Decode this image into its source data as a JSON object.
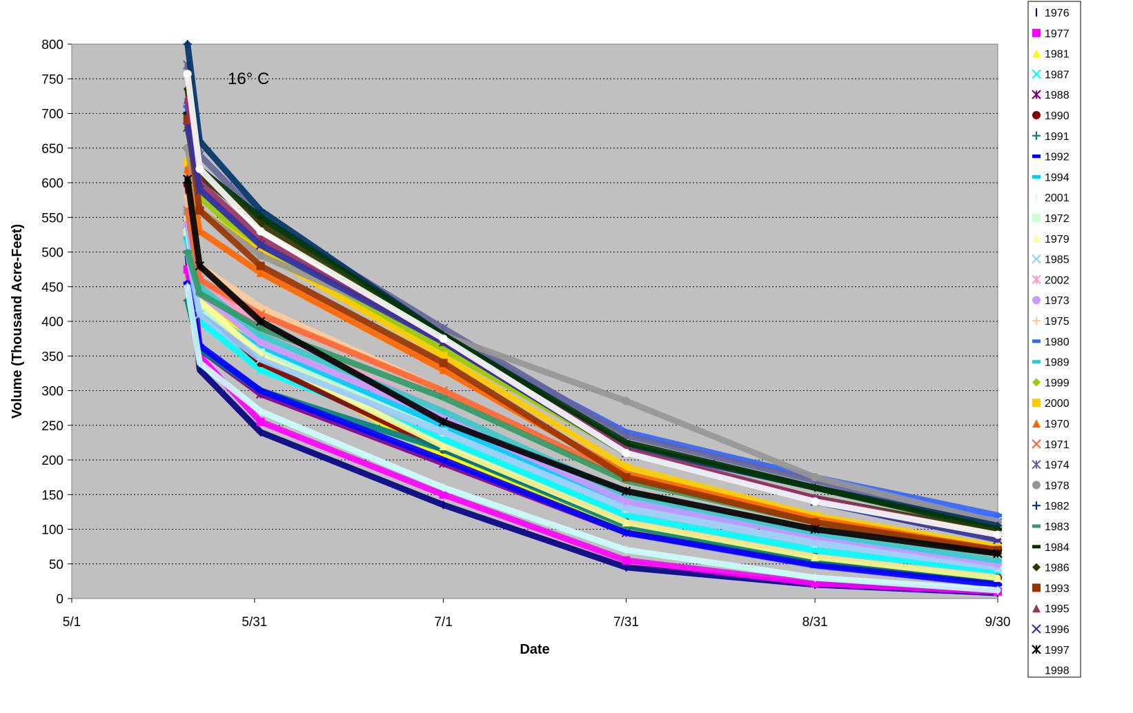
{
  "chart_data": {
    "type": "scatter",
    "title": "",
    "xlabel": "Date",
    "ylabel": "Volume (Thousand Acre-Feet)",
    "annotation": "16° C",
    "x_axis": {
      "type": "date",
      "min": "5/1",
      "max": "9/30",
      "ticks": [
        "5/1",
        "5/31",
        "7/1",
        "7/31",
        "8/31",
        "9/30"
      ]
    },
    "y_axis": {
      "min": 0,
      "max": 800,
      "step": 50,
      "ticks": [
        0,
        50,
        100,
        150,
        200,
        250,
        300,
        350,
        400,
        450,
        500,
        550,
        600,
        650,
        700,
        750,
        800
      ]
    },
    "plot_background": "#c0c0c0",
    "grid": "horizontal dotted",
    "legend_position": "right",
    "series": [
      {
        "name": "1976",
        "color": "#000080",
        "marker": "bar",
        "x": [
          "5/20",
          "5/22",
          "6/1",
          "7/1",
          "7/31",
          "8/31",
          "9/30"
        ],
        "y": [
          497,
          330,
          240,
          135,
          45,
          20,
          8
        ]
      },
      {
        "name": "1977",
        "color": "#ff00ff",
        "marker": "square",
        "x": [
          "5/20",
          "5/22",
          "6/1",
          "7/1",
          "7/31",
          "8/31",
          "9/30"
        ],
        "y": [
          475,
          350,
          255,
          150,
          55,
          22,
          10
        ]
      },
      {
        "name": "1981",
        "color": "#ffff00",
        "marker": "triangle",
        "x": [
          "5/20",
          "5/22",
          "6/1",
          "7/1",
          "7/31",
          "8/31",
          "9/30"
        ],
        "y": [
          560,
          440,
          350,
          205,
          100,
          55,
          25
        ]
      },
      {
        "name": "1987",
        "color": "#00ffff",
        "marker": "x",
        "x": [
          "5/20",
          "5/22",
          "6/1",
          "7/1",
          "7/31",
          "8/31",
          "9/30"
        ],
        "y": [
          520,
          400,
          330,
          230,
          120,
          70,
          40
        ]
      },
      {
        "name": "1988",
        "color": "#800080",
        "marker": "star",
        "x": [
          "5/20",
          "5/22",
          "6/1",
          "7/1",
          "7/31",
          "8/31",
          "9/30"
        ],
        "y": [
          540,
          360,
          295,
          195,
          95,
          50,
          25
        ]
      },
      {
        "name": "1990",
        "color": "#800000",
        "marker": "circle",
        "x": [
          "5/20",
          "5/22",
          "6/1",
          "7/1",
          "7/31",
          "8/31",
          "9/30"
        ],
        "y": [
          597,
          420,
          340,
          215,
          110,
          60,
          30
        ]
      },
      {
        "name": "1991",
        "color": "#008080",
        "marker": "plus",
        "x": [
          "5/20",
          "5/22",
          "6/1",
          "7/1",
          "7/31",
          "8/31",
          "9/30"
        ],
        "y": [
          430,
          360,
          300,
          215,
          105,
          55,
          28
        ]
      },
      {
        "name": "1992",
        "color": "#0000ff",
        "marker": "dash",
        "x": [
          "5/20",
          "5/22",
          "6/1",
          "7/1",
          "7/31",
          "8/31",
          "9/30"
        ],
        "y": [
          455,
          365,
          300,
          200,
          95,
          48,
          20
        ]
      },
      {
        "name": "1994",
        "color": "#00ccff",
        "marker": "dash",
        "x": [
          "5/20",
          "5/22",
          "6/1",
          "7/1",
          "7/31",
          "8/31",
          "9/30"
        ],
        "y": [
          520,
          420,
          360,
          250,
          140,
          90,
          50
        ]
      },
      {
        "name": "2001",
        "color": "#ccffff",
        "marker": "bar",
        "x": [
          "5/20",
          "5/22",
          "6/1",
          "7/1",
          "7/31",
          "8/31",
          "9/30"
        ],
        "y": [
          450,
          340,
          270,
          160,
          70,
          30,
          12
        ]
      },
      {
        "name": "1972",
        "color": "#ccffcc",
        "marker": "square",
        "x": [
          "5/20",
          "5/22",
          "6/1",
          "7/1",
          "7/31",
          "8/31",
          "9/30"
        ],
        "y": [
          530,
          420,
          355,
          240,
          130,
          80,
          45
        ]
      },
      {
        "name": "1979",
        "color": "#ffff99",
        "marker": "triangle",
        "x": [
          "5/20",
          "5/22",
          "6/1",
          "7/1",
          "7/31",
          "8/31",
          "9/30"
        ],
        "y": [
          550,
          430,
          350,
          220,
          110,
          60,
          30
        ]
      },
      {
        "name": "1985",
        "color": "#99ccff",
        "marker": "x",
        "x": [
          "5/20",
          "5/22",
          "6/1",
          "7/1",
          "7/31",
          "8/31",
          "9/30"
        ],
        "y": [
          500,
          410,
          345,
          240,
          130,
          80,
          45
        ]
      },
      {
        "name": "2002",
        "color": "#ff99cc",
        "marker": "star",
        "x": [
          "5/20",
          "5/22",
          "6/1",
          "7/1",
          "7/31",
          "8/31",
          "9/30"
        ],
        "y": [
          560,
          460,
          390,
          270,
          150,
          95,
          55
        ]
      },
      {
        "name": "1973",
        "color": "#cc99ff",
        "marker": "circle",
        "x": [
          "5/20",
          "5/22",
          "6/1",
          "7/1",
          "7/31",
          "8/31",
          "9/30"
        ],
        "y": [
          540,
          440,
          370,
          260,
          140,
          90,
          50
        ]
      },
      {
        "name": "1975",
        "color": "#ffcc99",
        "marker": "plus",
        "x": [
          "5/20",
          "5/22",
          "6/1",
          "7/1",
          "7/31",
          "8/31",
          "9/30"
        ],
        "y": [
          580,
          480,
          420,
          300,
          170,
          110,
          60
        ]
      },
      {
        "name": "1980",
        "color": "#3366ff",
        "marker": "dash",
        "x": [
          "5/20",
          "5/22",
          "6/1",
          "7/1",
          "7/31",
          "8/31",
          "9/30"
        ],
        "y": [
          710,
          590,
          510,
          380,
          240,
          175,
          120
        ]
      },
      {
        "name": "1989",
        "color": "#33cccc",
        "marker": "dash",
        "x": [
          "5/20",
          "5/22",
          "6/1",
          "7/1",
          "7/31",
          "8/31",
          "9/30"
        ],
        "y": [
          560,
          450,
          380,
          270,
          150,
          95,
          55
        ]
      },
      {
        "name": "1999",
        "color": "#99cc00",
        "marker": "diamond",
        "x": [
          "5/20",
          "5/22",
          "6/1",
          "7/1",
          "7/31",
          "8/31",
          "9/30"
        ],
        "y": [
          680,
          580,
          500,
          360,
          210,
          140,
          90
        ]
      },
      {
        "name": "2000",
        "color": "#ffcc00",
        "marker": "square",
        "x": [
          "5/20",
          "5/22",
          "6/1",
          "7/1",
          "7/31",
          "8/31",
          "9/30"
        ],
        "y": [
          630,
          560,
          500,
          350,
          190,
          120,
          75
        ]
      },
      {
        "name": "1970",
        "color": "#ff6600",
        "marker": "triangle",
        "x": [
          "5/20",
          "5/22",
          "6/1",
          "7/1",
          "7/31",
          "8/31",
          "9/30"
        ],
        "y": [
          620,
          530,
          470,
          330,
          180,
          115,
          70
        ]
      },
      {
        "name": "1971",
        "color": "#ff6633",
        "marker": "x",
        "x": [
          "5/20",
          "5/22",
          "6/1",
          "7/1",
          "7/31",
          "8/31",
          "9/30"
        ],
        "y": [
          560,
          460,
          410,
          300,
          175,
          110,
          65
        ]
      },
      {
        "name": "1974",
        "color": "#666699",
        "marker": "star",
        "x": [
          "5/20",
          "5/22",
          "6/1",
          "7/1",
          "7/31",
          "8/31",
          "9/30"
        ],
        "y": [
          770,
          640,
          550,
          390,
          235,
          170,
          110
        ]
      },
      {
        "name": "1978",
        "color": "#969696",
        "marker": "circle",
        "x": [
          "5/20",
          "5/22",
          "6/1",
          "7/1",
          "7/31",
          "8/31",
          "9/30"
        ],
        "y": [
          650,
          560,
          495,
          380,
          285,
          175,
          110
        ]
      },
      {
        "name": "1982",
        "color": "#003366",
        "marker": "plus",
        "x": [
          "5/20",
          "5/22",
          "6/1",
          "7/1",
          "7/31",
          "8/31",
          "9/30"
        ],
        "y": [
          800,
          660,
          560,
          380,
          220,
          160,
          105
        ]
      },
      {
        "name": "1983",
        "color": "#339966",
        "marker": "dash",
        "x": [
          "5/20",
          "5/22",
          "6/1",
          "7/1",
          "7/31",
          "8/31",
          "9/30"
        ],
        "y": [
          500,
          440,
          390,
          290,
          170,
          110,
          65
        ]
      },
      {
        "name": "1984",
        "color": "#003300",
        "marker": "dash",
        "x": [
          "5/20",
          "5/22",
          "6/1",
          "7/1",
          "7/31",
          "8/31",
          "9/30"
        ],
        "y": [
          700,
          620,
          550,
          380,
          225,
          160,
          100
        ]
      },
      {
        "name": "1986",
        "color": "#333300",
        "marker": "diamond",
        "x": [
          "5/20",
          "5/22",
          "6/1",
          "7/1",
          "7/31",
          "8/31",
          "9/30"
        ],
        "y": [
          735,
          610,
          540,
          370,
          210,
          145,
          95
        ]
      },
      {
        "name": "1993",
        "color": "#993300",
        "marker": "square",
        "x": [
          "5/20",
          "5/22",
          "6/1",
          "7/1",
          "7/31",
          "8/31",
          "9/30"
        ],
        "y": [
          692,
          560,
          480,
          340,
          175,
          110,
          70
        ]
      },
      {
        "name": "1995",
        "color": "#993366",
        "marker": "triangle",
        "x": [
          "5/20",
          "5/22",
          "6/1",
          "7/1",
          "7/31",
          "8/31",
          "9/30"
        ],
        "y": [
          720,
          600,
          520,
          370,
          215,
          145,
          90
        ]
      },
      {
        "name": "1996",
        "color": "#333399",
        "marker": "x",
        "x": [
          "5/20",
          "5/22",
          "6/1",
          "7/1",
          "7/31",
          "8/31",
          "9/30"
        ],
        "y": [
          680,
          590,
          510,
          370,
          210,
          140,
          85
        ]
      },
      {
        "name": "1997",
        "color": "#000000",
        "marker": "star",
        "x": [
          "5/20",
          "5/22",
          "6/1",
          "7/1",
          "7/31",
          "8/31",
          "9/30"
        ],
        "y": [
          605,
          480,
          400,
          255,
          155,
          100,
          65
        ]
      },
      {
        "name": "1998",
        "color": "#ffffff",
        "marker": "circle",
        "x": [
          "5/20",
          "5/22",
          "6/1",
          "7/1",
          "7/31",
          "8/31",
          "9/30"
        ],
        "y": [
          757,
          620,
          530,
          375,
          210,
          140,
          92
        ]
      }
    ]
  }
}
